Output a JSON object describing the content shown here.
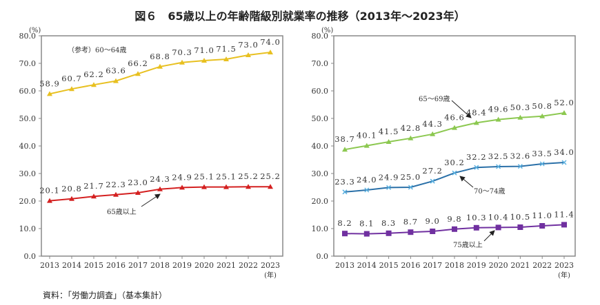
{
  "title": "図６　65歳以上の年齢階級別就業率の推移（2013年～2023年）",
  "source": "資料：「労働力調査」（基本集計）",
  "chart_data": [
    {
      "type": "line",
      "yunit": "(%)",
      "xunit": "(年)",
      "ylim": [
        0,
        80
      ],
      "yticks": [
        "0.0",
        "10.0",
        "20.0",
        "30.0",
        "40.0",
        "50.0",
        "60.0",
        "70.0",
        "80.0"
      ],
      "categories": [
        "2013",
        "2014",
        "2015",
        "2016",
        "2017",
        "2018",
        "2019",
        "2020",
        "2021",
        "2022",
        "2023"
      ],
      "grid": false,
      "series": [
        {
          "name": "（参考）60～64歳",
          "color": "#e8c020",
          "marker": "triangle",
          "values": [
            58.9,
            60.7,
            62.2,
            63.6,
            66.2,
            68.8,
            70.3,
            71.0,
            71.5,
            73.0,
            74.0
          ],
          "labels": [
            "58.9",
            "60.7",
            "62.2",
            "63.6",
            "66.2",
            "68.8",
            "70.3",
            "71.0",
            "71.5",
            "73.0",
            "74.0"
          ]
        },
        {
          "name": "65歳以上",
          "color": "#d42020",
          "marker": "triangle",
          "values": [
            20.1,
            20.8,
            21.7,
            22.3,
            23.0,
            24.3,
            24.9,
            25.1,
            25.1,
            25.2,
            25.2
          ],
          "labels": [
            "20.1",
            "20.8",
            "21.7",
            "22.3",
            "23.0",
            "24.3",
            "24.9",
            "25.1",
            "25.1",
            "25.2",
            "25.2"
          ]
        }
      ]
    },
    {
      "type": "line",
      "yunit": "(%)",
      "xunit": "(年)",
      "ylim": [
        0,
        80
      ],
      "yticks": [
        "0.0",
        "10.0",
        "20.0",
        "30.0",
        "40.0",
        "50.0",
        "60.0",
        "70.0",
        "80.0"
      ],
      "categories": [
        "2013",
        "2014",
        "2015",
        "2016",
        "2017",
        "2018",
        "2019",
        "2020",
        "2021",
        "2022",
        "2023"
      ],
      "grid": false,
      "series": [
        {
          "name": "65～69歳",
          "color": "#8cc850",
          "marker": "triangle",
          "values": [
            38.7,
            40.1,
            41.5,
            42.8,
            44.3,
            46.6,
            48.4,
            49.6,
            50.3,
            50.8,
            52.0
          ],
          "labels": [
            "38.7",
            "40.1",
            "41.5",
            "42.8",
            "44.3",
            "46.6",
            "48.4",
            "49.6",
            "50.3",
            "50.8",
            "52.0"
          ]
        },
        {
          "name": "70～74歳",
          "color": "#2a70a8",
          "marker": "x",
          "values": [
            23.3,
            24.0,
            24.9,
            25.0,
            27.2,
            30.2,
            32.2,
            32.5,
            32.6,
            33.5,
            34.0
          ],
          "labels": [
            "23.3",
            "24.0",
            "24.9",
            "25.0",
            "27.2",
            "30.2",
            "32.2",
            "32.5",
            "32.6",
            "33.5",
            "34.0"
          ]
        },
        {
          "name": "75歳以上",
          "color": "#7030a0",
          "marker": "square",
          "values": [
            8.2,
            8.1,
            8.3,
            8.7,
            9.0,
            9.8,
            10.3,
            10.4,
            10.5,
            11.0,
            11.4
          ],
          "labels": [
            "8.2",
            "8.1",
            "8.3",
            "8.7",
            "9.0",
            "9.8",
            "10.3",
            "10.4",
            "10.5",
            "11.0",
            "11.4"
          ]
        }
      ]
    }
  ]
}
